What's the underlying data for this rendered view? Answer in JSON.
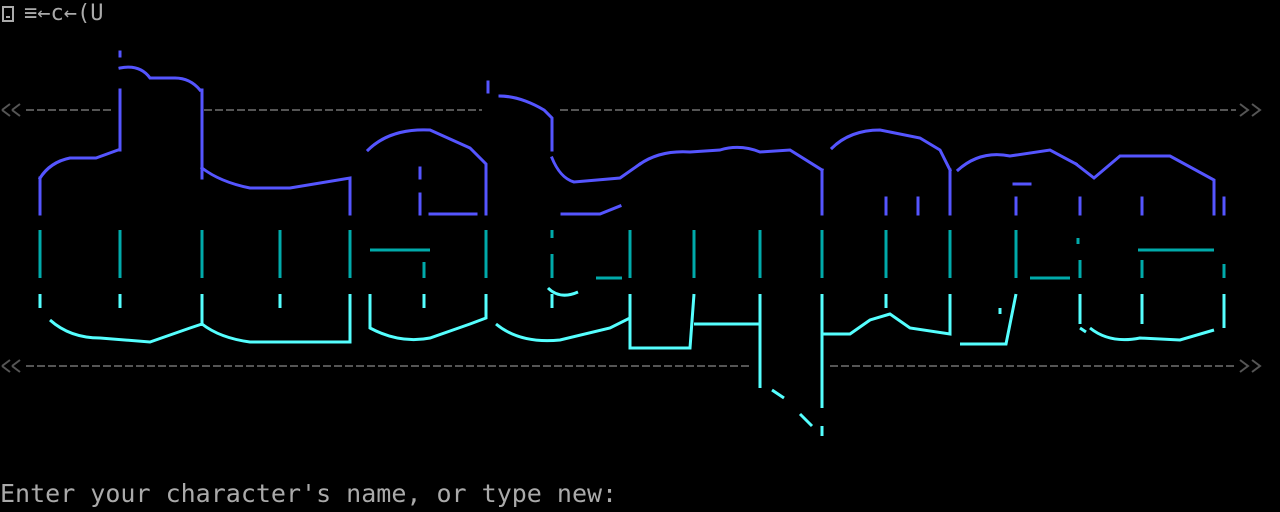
{
  "titlebar": {
    "text": "≡←c←(U",
    "icon": "window-menu-icon"
  },
  "banner": {
    "name": "dwelmore",
    "colors": {
      "rule": "#555555",
      "arrow": "#555555",
      "blue": "#5555ff",
      "cyan": "#00aaaa",
      "light_cyan": "#55ffff"
    }
  },
  "prompt": {
    "text": "Enter your character's name, or type new:"
  }
}
